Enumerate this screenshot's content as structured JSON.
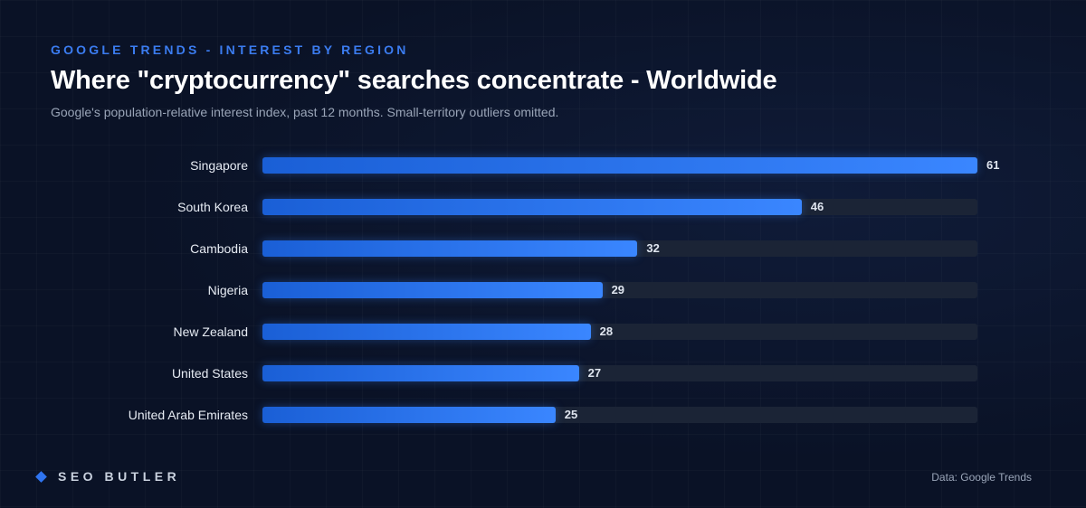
{
  "header": {
    "eyebrow": "GOOGLE TRENDS - INTEREST BY REGION",
    "title": "Where \"cryptocurrency\" searches concentrate - Worldwide",
    "subtitle": "Google's population-relative interest index, past 12 months. Small-territory outliers omitted."
  },
  "chart_data": {
    "type": "bar",
    "orientation": "horizontal",
    "categories": [
      "Singapore",
      "South Korea",
      "Cambodia",
      "Nigeria",
      "New Zealand",
      "United States",
      "United Arab Emirates"
    ],
    "values": [
      61,
      46,
      32,
      29,
      28,
      27,
      25
    ],
    "xlim": [
      0,
      61
    ],
    "grid": false,
    "colors": {
      "bar": "#3a86ff",
      "bar_start": "#1a5fd6",
      "track": "#1b2436"
    }
  },
  "footer": {
    "brand": "SEO BUTLER",
    "source": "Data: Google Trends"
  }
}
